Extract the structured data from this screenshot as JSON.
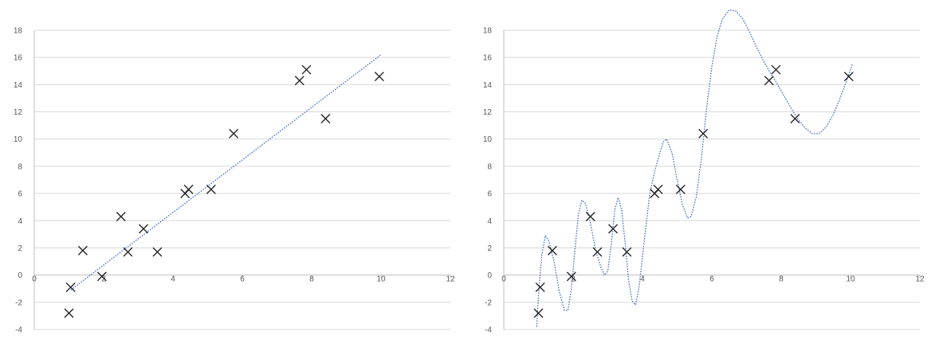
{
  "chart_data": [
    {
      "type": "scatter",
      "title": "",
      "xlabel": "",
      "ylabel": "",
      "xlim": [
        0,
        12
      ],
      "ylim": [
        -4,
        18
      ],
      "x_ticks": [
        0,
        2,
        4,
        6,
        8,
        10,
        12
      ],
      "y_ticks": [
        -4,
        -2,
        0,
        2,
        4,
        6,
        8,
        10,
        12,
        14,
        16,
        18
      ],
      "grid": "horizontal",
      "marker": "x",
      "trendline": "linear",
      "points": [
        {
          "x": 1.0,
          "y": -2.8
        },
        {
          "x": 1.05,
          "y": -0.9
        },
        {
          "x": 1.4,
          "y": 1.8
        },
        {
          "x": 1.95,
          "y": -0.1
        },
        {
          "x": 2.5,
          "y": 4.3
        },
        {
          "x": 2.7,
          "y": 1.7
        },
        {
          "x": 3.15,
          "y": 3.4
        },
        {
          "x": 3.55,
          "y": 1.7
        },
        {
          "x": 4.35,
          "y": 6.0
        },
        {
          "x": 4.45,
          "y": 6.3
        },
        {
          "x": 5.1,
          "y": 6.3
        },
        {
          "x": 5.75,
          "y": 10.4
        },
        {
          "x": 7.65,
          "y": 14.3
        },
        {
          "x": 7.85,
          "y": 15.1
        },
        {
          "x": 8.4,
          "y": 11.5
        },
        {
          "x": 9.95,
          "y": 14.6
        }
      ],
      "trend_curve": [
        {
          "x": 1.05,
          "y": -1.1
        },
        {
          "x": 10.0,
          "y": 16.2
        }
      ]
    },
    {
      "type": "scatter",
      "title": "",
      "xlabel": "",
      "ylabel": "",
      "xlim": [
        0,
        12
      ],
      "ylim": [
        -4,
        18
      ],
      "x_ticks": [
        0,
        2,
        4,
        6,
        8,
        10,
        12
      ],
      "y_ticks": [
        -4,
        -2,
        0,
        2,
        4,
        6,
        8,
        10,
        12,
        14,
        16,
        18
      ],
      "grid": "horizontal",
      "marker": "x",
      "trendline": "polynomial",
      "points": [
        {
          "x": 1.0,
          "y": -2.8
        },
        {
          "x": 1.05,
          "y": -0.9
        },
        {
          "x": 1.4,
          "y": 1.8
        },
        {
          "x": 1.95,
          "y": -0.1
        },
        {
          "x": 2.5,
          "y": 4.3
        },
        {
          "x": 2.7,
          "y": 1.7
        },
        {
          "x": 3.15,
          "y": 3.4
        },
        {
          "x": 3.55,
          "y": 1.7
        },
        {
          "x": 4.35,
          "y": 6.0
        },
        {
          "x": 4.45,
          "y": 6.3
        },
        {
          "x": 5.1,
          "y": 6.3
        },
        {
          "x": 5.75,
          "y": 10.4
        },
        {
          "x": 7.65,
          "y": 14.3
        },
        {
          "x": 7.85,
          "y": 15.1
        },
        {
          "x": 8.4,
          "y": 11.5
        },
        {
          "x": 9.95,
          "y": 14.6
        }
      ],
      "trend_curve": [
        {
          "x": 0.95,
          "y": -3.8
        },
        {
          "x": 1.0,
          "y": -1.5
        },
        {
          "x": 1.1,
          "y": 1.5
        },
        {
          "x": 1.2,
          "y": 2.9
        },
        {
          "x": 1.3,
          "y": 2.5
        },
        {
          "x": 1.45,
          "y": 1.0
        },
        {
          "x": 1.6,
          "y": -1.2
        },
        {
          "x": 1.75,
          "y": -2.6
        },
        {
          "x": 1.85,
          "y": -2.6
        },
        {
          "x": 1.95,
          "y": -1.0
        },
        {
          "x": 2.05,
          "y": 1.8
        },
        {
          "x": 2.15,
          "y": 4.4
        },
        {
          "x": 2.25,
          "y": 5.5
        },
        {
          "x": 2.35,
          "y": 5.3
        },
        {
          "x": 2.5,
          "y": 3.8
        },
        {
          "x": 2.65,
          "y": 1.8
        },
        {
          "x": 2.8,
          "y": 0.6
        },
        {
          "x": 2.9,
          "y": 0.0
        },
        {
          "x": 3.0,
          "y": 0.3
        },
        {
          "x": 3.1,
          "y": 2.3
        },
        {
          "x": 3.2,
          "y": 4.8
        },
        {
          "x": 3.3,
          "y": 5.7
        },
        {
          "x": 3.4,
          "y": 4.8
        },
        {
          "x": 3.5,
          "y": 2.3
        },
        {
          "x": 3.6,
          "y": -0.4
        },
        {
          "x": 3.7,
          "y": -1.9
        },
        {
          "x": 3.8,
          "y": -2.2
        },
        {
          "x": 3.9,
          "y": -0.9
        },
        {
          "x": 4.05,
          "y": 2.5
        },
        {
          "x": 4.2,
          "y": 5.8
        },
        {
          "x": 4.35,
          "y": 7.6
        },
        {
          "x": 4.5,
          "y": 9.0
        },
        {
          "x": 4.6,
          "y": 9.8
        },
        {
          "x": 4.7,
          "y": 10.0
        },
        {
          "x": 4.85,
          "y": 9.0
        },
        {
          "x": 5.0,
          "y": 7.0
        },
        {
          "x": 5.15,
          "y": 5.2
        },
        {
          "x": 5.3,
          "y": 4.2
        },
        {
          "x": 5.4,
          "y": 4.3
        },
        {
          "x": 5.55,
          "y": 5.7
        },
        {
          "x": 5.7,
          "y": 8.6
        },
        {
          "x": 5.85,
          "y": 12.3
        },
        {
          "x": 6.0,
          "y": 15.3
        },
        {
          "x": 6.15,
          "y": 17.5
        },
        {
          "x": 6.3,
          "y": 18.8
        },
        {
          "x": 6.5,
          "y": 19.5
        },
        {
          "x": 6.7,
          "y": 19.4
        },
        {
          "x": 6.9,
          "y": 18.8
        },
        {
          "x": 7.1,
          "y": 17.8
        },
        {
          "x": 7.3,
          "y": 16.7
        },
        {
          "x": 7.5,
          "y": 15.7
        },
        {
          "x": 7.7,
          "y": 14.8
        },
        {
          "x": 7.9,
          "y": 14.0
        },
        {
          "x": 8.1,
          "y": 13.1
        },
        {
          "x": 8.3,
          "y": 12.2
        },
        {
          "x": 8.5,
          "y": 11.4
        },
        {
          "x": 8.7,
          "y": 10.8
        },
        {
          "x": 8.9,
          "y": 10.4
        },
        {
          "x": 9.1,
          "y": 10.4
        },
        {
          "x": 9.3,
          "y": 10.9
        },
        {
          "x": 9.5,
          "y": 11.8
        },
        {
          "x": 9.7,
          "y": 13.0
        },
        {
          "x": 9.9,
          "y": 14.4
        },
        {
          "x": 10.05,
          "y": 15.5
        }
      ]
    }
  ]
}
